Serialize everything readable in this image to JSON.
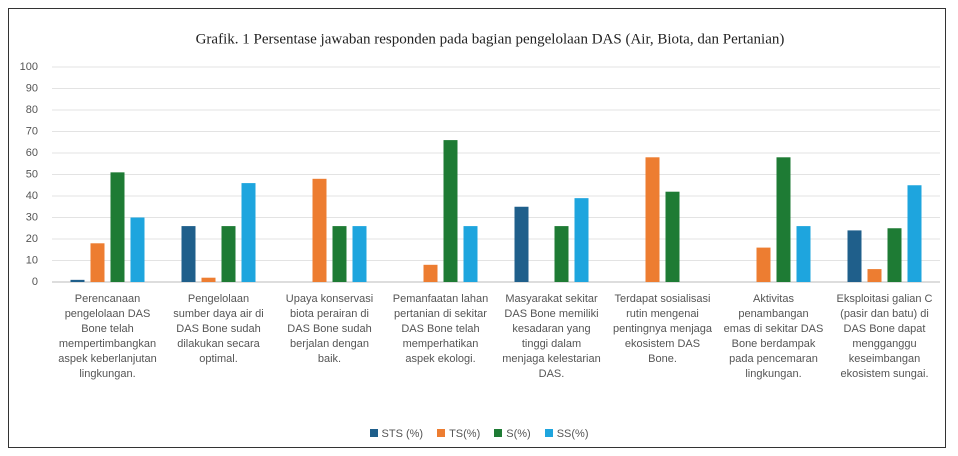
{
  "chart_data": {
    "type": "bar",
    "title": "Grafik. 1 Persentase jawaban responden pada bagian pengelolaan DAS (Air, Biota, dan Pertanian)",
    "categories": [
      "Perencanaan pengelolaan DAS Bone telah mempertimbangkan aspek keberlanjutan lingkungan.",
      "Pengelolaan sumber daya air di DAS Bone sudah dilakukan secara optimal.",
      "Upaya konservasi biota perairan di DAS Bone sudah berjalan dengan baik.",
      "Pemanfaatan lahan pertanian di sekitar DAS Bone telah memperhatikan aspek ekologi.",
      "Masyarakat sekitar DAS Bone memiliki kesadaran yang tinggi dalam menjaga kelestarian DAS.",
      "Terdapat sosialisasi rutin mengenai pentingnya menjaga ekosistem DAS Bone.",
      "Aktivitas penambangan emas di sekitar DAS Bone berdampak pada pencemaran lingkungan.",
      "Eksploitasi galian C (pasir dan batu) di DAS Bone dapat mengganggu keseimbangan ekosistem sungai."
    ],
    "series": [
      {
        "name": "STS (%)",
        "color": "#1f5f8b",
        "values": [
          1,
          26,
          0,
          0,
          35,
          0,
          0,
          24
        ]
      },
      {
        "name": "TS(%)",
        "color": "#ed7d31",
        "values": [
          18,
          2,
          48,
          8,
          0,
          58,
          16,
          6
        ]
      },
      {
        "name": "S(%)",
        "color": "#1e7b34",
        "values": [
          51,
          26,
          26,
          66,
          26,
          42,
          58,
          25
        ]
      },
      {
        "name": "SS(%)",
        "color": "#1ea5de",
        "values": [
          30,
          46,
          26,
          26,
          39,
          0,
          26,
          45
        ]
      }
    ],
    "ylim": [
      0,
      100
    ],
    "yticks": [
      0,
      10,
      20,
      30,
      40,
      50,
      60,
      70,
      80,
      90,
      100
    ],
    "grid": true,
    "legend": "bottom"
  }
}
